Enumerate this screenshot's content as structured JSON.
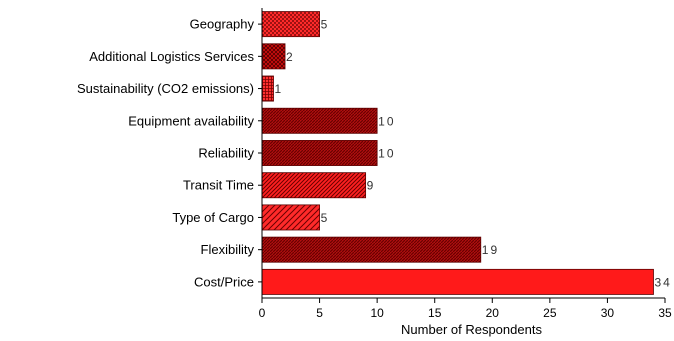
{
  "chart_data": {
    "type": "bar",
    "orientation": "horizontal",
    "categories": [
      "Geography",
      "Additional Logistics Services",
      "Sustainability (CO2 emissions)",
      "Equipment availability",
      "Reliability",
      "Transit Time",
      "Type of Cargo",
      "Flexibility",
      "Cost/Price"
    ],
    "values": [
      5,
      2,
      1,
      10,
      10,
      9,
      5,
      19,
      34
    ],
    "value_labels": [
      "5",
      "2",
      "1",
      "10",
      "10",
      "9",
      "5",
      "19",
      "34"
    ],
    "xlabel": "Number of Respondents",
    "ylabel": "",
    "title": "",
    "xlim": [
      0,
      35
    ],
    "xticks": [
      0,
      5,
      10,
      15,
      20,
      25,
      30,
      35
    ],
    "xtick_labels": [
      "0",
      "5",
      "10",
      "15",
      "20",
      "25",
      "30",
      "35"
    ],
    "grid": false,
    "legend": "none",
    "colors": {
      "bar_fill": "#ff1a1a",
      "bar_dark": "#9e0b0b",
      "bar_stroke": "#5a0000",
      "axis": "#000000"
    }
  }
}
